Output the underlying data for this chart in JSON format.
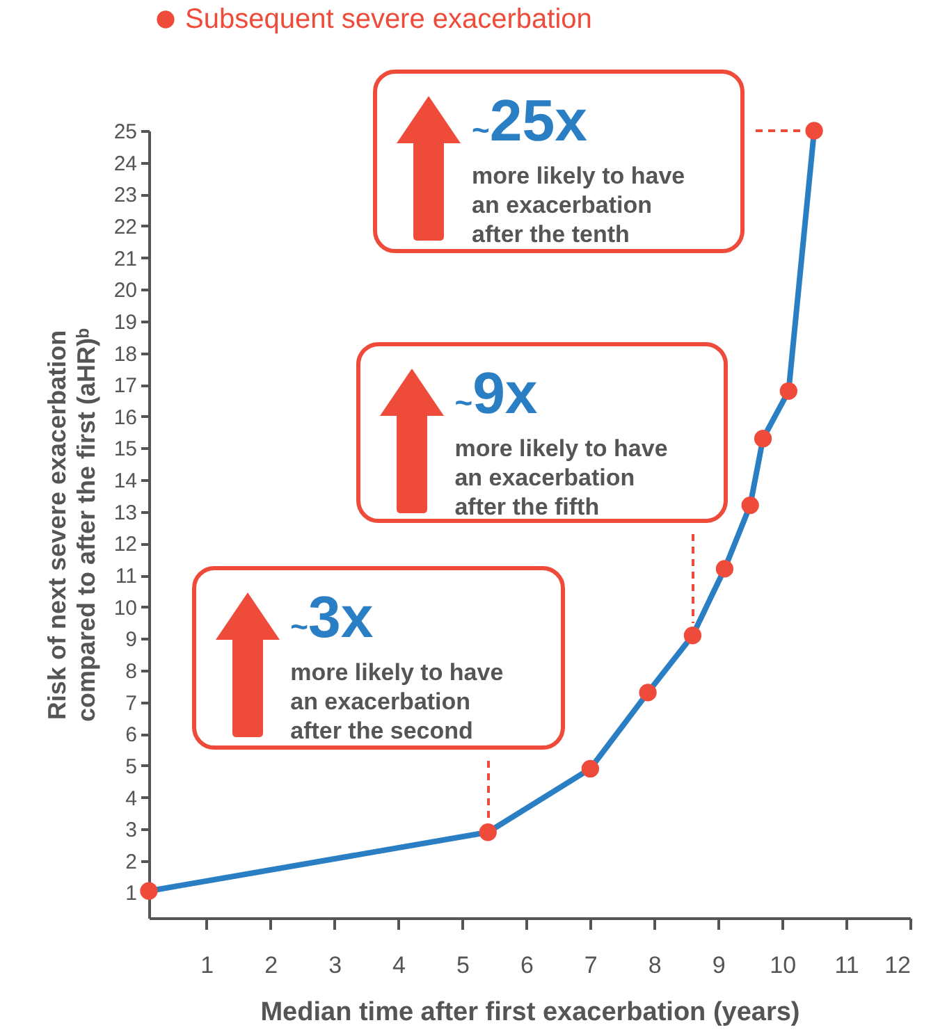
{
  "chart_data": {
    "type": "line",
    "xlabel": "Median time after first exacerbation (years)",
    "ylabel": "Risk of next severe exacerbation compared to after the first (aHR)ᵇ",
    "xlim": [
      0.1,
      12
    ],
    "xticks": [
      1,
      2,
      3,
      4,
      5,
      6,
      7,
      8,
      9,
      10,
      11,
      12
    ],
    "ylim": [
      0.2,
      25
    ],
    "yticks": [
      1,
      2,
      3,
      4,
      5,
      6,
      7,
      8,
      9,
      10,
      11,
      12,
      13,
      14,
      15,
      16,
      17,
      18,
      19,
      20,
      21,
      22,
      23,
      24,
      25
    ],
    "grid": false,
    "legend": "top left",
    "x": [
      0.1,
      5.4,
      7.0,
      7.9,
      8.6,
      9.1,
      9.5,
      9.7,
      10.1,
      10.5
    ],
    "series": [
      {
        "type": "line",
        "color": "#2a7fc4",
        "line_style": "solid",
        "values": [
          1.05,
          2.9,
          4.9,
          7.3,
          9.1,
          11.2,
          13.2,
          15.3,
          16.8,
          25
        ]
      },
      {
        "type": "scatter",
        "name": "Subsequent severe exacerbation",
        "color": "#ef4b3a",
        "marker": "circle",
        "values": [
          1.05,
          2.9,
          4.9,
          7.3,
          9.1,
          11.2,
          13.2,
          15.3,
          16.8,
          25
        ]
      }
    ],
    "annotations": [
      {
        "text": "~3x more likely to have an exacerbation after the second",
        "x": 5.4,
        "y": 2.9
      },
      {
        "text": "~9x more likely to have an exacerbation after the fifth",
        "x": 8.6,
        "y": 9.1
      },
      {
        "text": "~25x more likely to have an exacerbation after the tenth",
        "x": 10.5,
        "y": 25
      }
    ]
  }
}
